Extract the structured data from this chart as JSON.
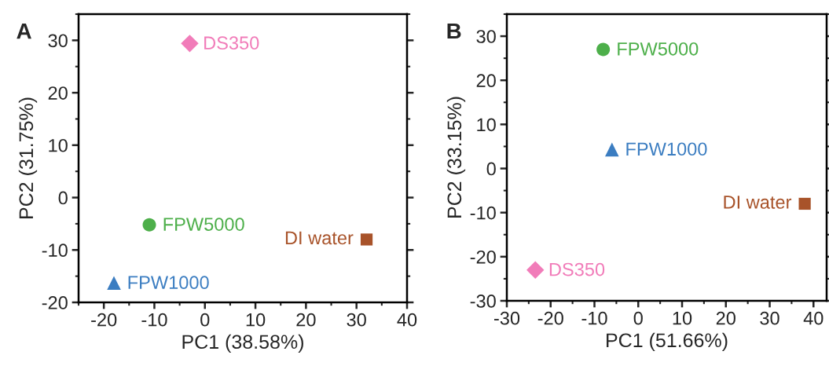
{
  "chart_data": [
    {
      "type": "scatter",
      "title": "A",
      "xlabel": "PC1 (38.58%)",
      "ylabel": "PC2 (31.75%)",
      "xlim": [
        -25,
        40
      ],
      "ylim": [
        -20,
        35
      ],
      "xticks": [
        -20,
        -10,
        0,
        10,
        20,
        30,
        40
      ],
      "yticks": [
        -20,
        -10,
        0,
        10,
        20,
        30
      ],
      "grid": false,
      "legend": false,
      "series": [
        {
          "name": "DS350",
          "color": "#f17cb9",
          "marker": "diamond",
          "x": [
            -3
          ],
          "values": [
            29.4
          ]
        },
        {
          "name": "FPW5000",
          "color": "#4daf4a",
          "marker": "circle",
          "x": [
            -11
          ],
          "values": [
            -5.2
          ]
        },
        {
          "name": "FPW1000",
          "color": "#3b7dc1",
          "marker": "triangle",
          "x": [
            -18
          ],
          "values": [
            -16.3
          ]
        },
        {
          "name": "DI water",
          "color": "#a8532a",
          "marker": "square",
          "x": [
            32
          ],
          "values": [
            -8
          ]
        }
      ]
    },
    {
      "type": "scatter",
      "title": "B",
      "xlabel": "PC1 (51.66%)",
      "ylabel": "PC2 (33.15%)",
      "xlim": [
        -30,
        43
      ],
      "ylim": [
        -30,
        35
      ],
      "xticks": [
        -30,
        -20,
        -10,
        0,
        10,
        20,
        30,
        40
      ],
      "yticks": [
        -30,
        -20,
        -10,
        0,
        10,
        20,
        30
      ],
      "grid": false,
      "legend": false,
      "series": [
        {
          "name": "FPW5000",
          "color": "#4daf4a",
          "marker": "circle",
          "x": [
            -8
          ],
          "values": [
            27
          ]
        },
        {
          "name": "FPW1000",
          "color": "#3b7dc1",
          "marker": "triangle",
          "x": [
            -6
          ],
          "values": [
            4.3
          ]
        },
        {
          "name": "DI water",
          "color": "#a8532a",
          "marker": "square",
          "x": [
            38
          ],
          "values": [
            -8
          ]
        },
        {
          "name": "DS350",
          "color": "#f17cb9",
          "marker": "diamond",
          "x": [
            -23.5
          ],
          "values": [
            -23
          ]
        }
      ]
    }
  ]
}
